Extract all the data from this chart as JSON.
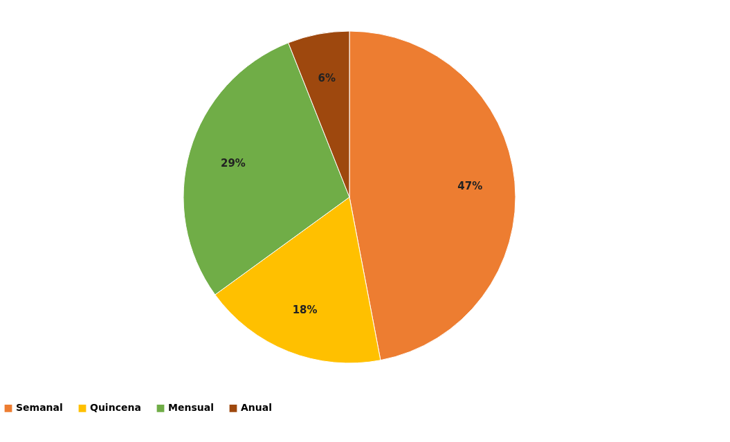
{
  "chart_data": {
    "type": "pie",
    "categories": [
      "Semanal",
      "Quincena",
      "Mensual",
      "Anual"
    ],
    "values": [
      47,
      18,
      29,
      6
    ],
    "colors": [
      "#ed7d31",
      "#ffc000",
      "#70ad47",
      "#9e480e"
    ],
    "value_labels": [
      "47%",
      "18%",
      "29%",
      "6%"
    ],
    "legend": "bottom"
  }
}
